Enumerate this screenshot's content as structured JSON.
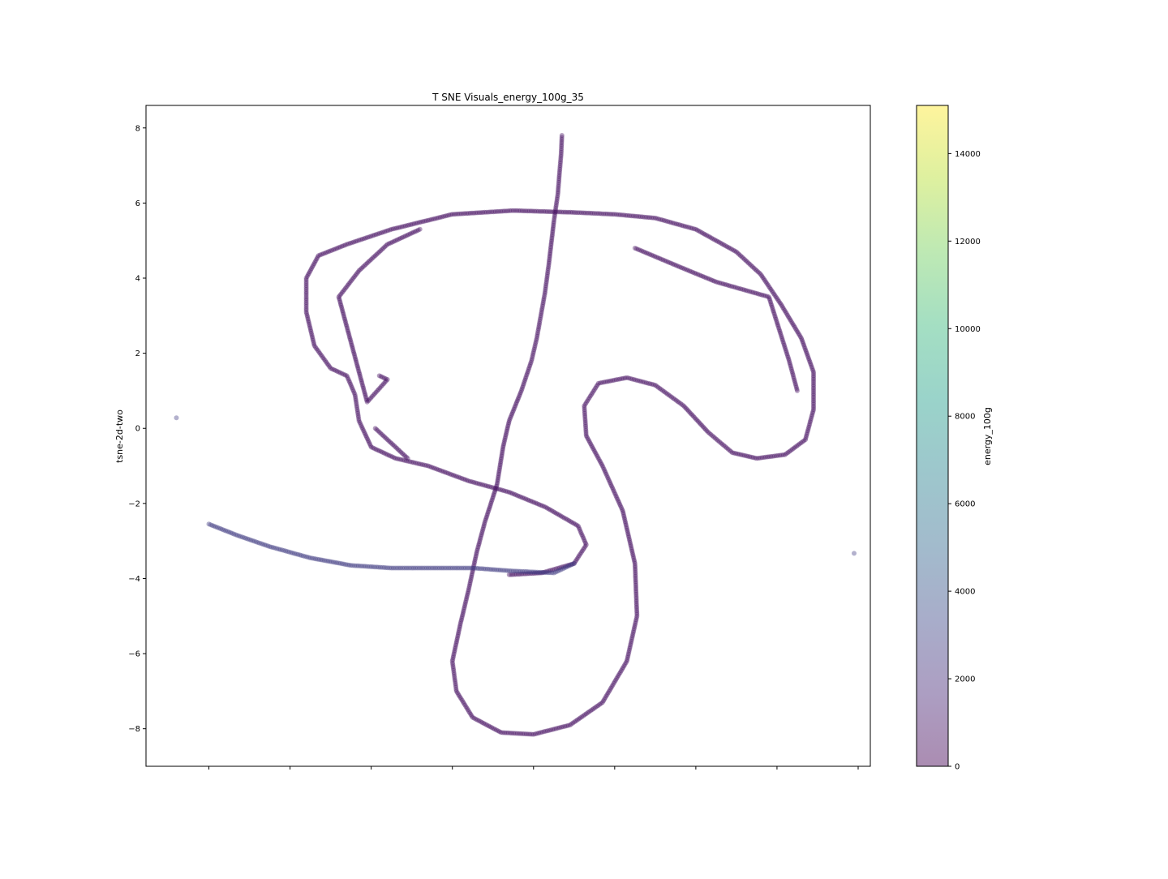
{
  "chart_data": {
    "type": "scatter",
    "title": "T SNE Visuals_energy_100g_35",
    "xlabel": "",
    "ylabel": "tsne-2d-two",
    "xlim": [
      -9.55,
      8.3
    ],
    "ylim": [
      -9.0,
      8.6
    ],
    "x_ticks": [
      -8,
      -6,
      -4,
      -2,
      0,
      2,
      4,
      6,
      8
    ],
    "y_ticks": [
      -8,
      -6,
      -4,
      -2,
      0,
      2,
      4,
      6,
      8
    ],
    "y_tick_labels": [
      "−8",
      "−6",
      "−4",
      "−2",
      "0",
      "2",
      "4",
      "6",
      "8"
    ],
    "x_tick_labels_visible": false,
    "grid": false,
    "marker_alpha": 0.4,
    "colorbar": {
      "label": "energy_100g",
      "min": 0,
      "max": 15100,
      "ticks": [
        0,
        2000,
        4000,
        6000,
        8000,
        10000,
        12000,
        14000
      ],
      "tick_labels": [
        "0",
        "2000",
        "4000",
        "6000",
        "8000",
        "10000",
        "12000",
        "14000"
      ],
      "colormap": [
        "#440154",
        "#482878",
        "#3e4989",
        "#31688e",
        "#26828e",
        "#1f9e89",
        "#35b779",
        "#6ece58",
        "#b5de2b",
        "#fde725"
      ]
    },
    "series": [
      {
        "color_value": 600,
        "points": [
          [
            0.7,
            7.8
          ],
          [
            0.68,
            7.3
          ],
          [
            0.64,
            6.8
          ],
          [
            0.6,
            6.25
          ],
          [
            0.5,
            5.5
          ],
          [
            0.38,
            4.4
          ],
          [
            0.28,
            3.6
          ],
          [
            0.18,
            3.0
          ],
          [
            0.08,
            2.4
          ],
          [
            -0.05,
            1.8
          ],
          [
            -0.3,
            1.0
          ],
          [
            -0.6,
            0.2
          ],
          [
            -0.75,
            -0.5
          ],
          [
            -0.9,
            -1.5
          ],
          [
            -1.2,
            -2.5
          ],
          [
            -1.4,
            -3.3
          ],
          [
            -1.6,
            -4.3
          ],
          [
            -1.8,
            -5.2
          ],
          [
            -2.0,
            -6.2
          ],
          [
            -1.9,
            -7.0
          ],
          [
            -1.5,
            -7.7
          ],
          [
            -0.8,
            -8.1
          ],
          [
            0.0,
            -8.15
          ],
          [
            0.9,
            -7.9
          ],
          [
            1.7,
            -7.3
          ],
          [
            2.3,
            -6.2
          ],
          [
            2.55,
            -5.0
          ],
          [
            2.5,
            -3.6
          ],
          [
            2.2,
            -2.2
          ],
          [
            1.7,
            -1.0
          ],
          [
            1.3,
            -0.2
          ],
          [
            1.25,
            0.6
          ],
          [
            1.6,
            1.2
          ],
          [
            2.3,
            1.35
          ],
          [
            3.0,
            1.15
          ],
          [
            3.7,
            0.6
          ],
          [
            4.3,
            -0.1
          ],
          [
            4.9,
            -0.65
          ],
          [
            5.5,
            -0.8
          ],
          [
            6.2,
            -0.7
          ],
          [
            6.7,
            -0.3
          ],
          [
            6.9,
            0.5
          ],
          [
            6.9,
            1.5
          ],
          [
            6.6,
            2.4
          ],
          [
            6.1,
            3.3
          ],
          [
            5.6,
            4.1
          ],
          [
            5.0,
            4.7
          ],
          [
            4.0,
            5.3
          ],
          [
            3.0,
            5.6
          ],
          [
            2.0,
            5.7
          ],
          [
            1.0,
            5.75
          ],
          [
            -0.5,
            5.8
          ],
          [
            -2.0,
            5.7
          ],
          [
            -3.5,
            5.3
          ],
          [
            -4.6,
            4.9
          ],
          [
            -5.3,
            4.6
          ],
          [
            -5.6,
            4.0
          ],
          [
            -5.6,
            3.1
          ],
          [
            -5.4,
            2.2
          ],
          [
            -5.0,
            1.6
          ],
          [
            -4.6,
            1.4
          ],
          [
            -4.4,
            0.9
          ],
          [
            -4.3,
            0.2
          ],
          [
            -4.0,
            -0.5
          ],
          [
            -3.4,
            -0.8
          ],
          [
            -2.6,
            -1.0
          ],
          [
            -1.6,
            -1.4
          ],
          [
            -0.6,
            -1.7
          ],
          [
            0.3,
            -2.1
          ],
          [
            1.1,
            -2.6
          ],
          [
            1.3,
            -3.1
          ],
          [
            1.0,
            -3.6
          ],
          [
            0.2,
            -3.85
          ],
          [
            -0.6,
            -3.9
          ],
          [
            -3.8,
            1.4
          ],
          [
            -3.6,
            1.3
          ],
          [
            -4.1,
            0.7
          ],
          [
            -4.8,
            3.5
          ],
          [
            -4.3,
            4.2
          ],
          [
            -3.6,
            4.9
          ],
          [
            -2.8,
            5.3
          ],
          [
            2.5,
            4.8
          ],
          [
            3.6,
            4.3
          ],
          [
            4.5,
            3.9
          ],
          [
            5.8,
            3.5
          ],
          [
            6.3,
            1.8
          ],
          [
            6.5,
            1.0
          ],
          [
            -3.1,
            -0.8
          ],
          [
            -3.9,
            0.0
          ]
        ]
      },
      {
        "color_value": 2700,
        "points": [
          [
            -8.0,
            -2.55
          ],
          [
            -7.3,
            -2.85
          ],
          [
            -6.5,
            -3.15
          ],
          [
            -5.5,
            -3.45
          ],
          [
            -4.5,
            -3.65
          ],
          [
            -3.5,
            -3.72
          ],
          [
            -2.5,
            -3.72
          ],
          [
            -1.5,
            -3.72
          ],
          [
            -0.5,
            -3.8
          ],
          [
            0.5,
            -3.85
          ],
          [
            1.0,
            -3.6
          ],
          [
            -8.8,
            0.28
          ],
          [
            7.9,
            -3.33
          ]
        ]
      }
    ]
  }
}
